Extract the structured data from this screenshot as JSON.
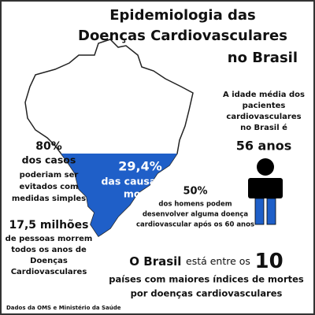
{
  "header": {
    "title": [
      "Epidemiologia das",
      "Doenças Cardiovasculares",
      "no Brasil"
    ]
  },
  "map_stat": {
    "value": "29,4%",
    "text": [
      "das causas de",
      "morte"
    ]
  },
  "age_stat": {
    "text": [
      "A idade média dos",
      "pacientes",
      "cardiovasculares",
      "no Brasil é"
    ],
    "value": "56 anos"
  },
  "prevent_stat": {
    "value": "80%",
    "text": [
      "dos casos",
      "poderiam ser",
      "evitados com",
      "medidas simples"
    ]
  },
  "men_stat": {
    "value": "50%",
    "text": [
      "dos homens podem",
      "desenvolver alguma doença",
      "cardiovascular após os 60 anos"
    ]
  },
  "deaths_stat": {
    "value": "17,5 milhões",
    "text": [
      "de pessoas morrem",
      "todos os anos de",
      "Doenças",
      "Cardiovasculares"
    ]
  },
  "ranking": {
    "subject": "O Brasil",
    "middle": "está entre os",
    "number": "10",
    "text": [
      "países com maiores índices de mortes",
      "por doenças cardiovasculares"
    ]
  },
  "source": "Dados da OMS e Ministério da Saúde"
}
